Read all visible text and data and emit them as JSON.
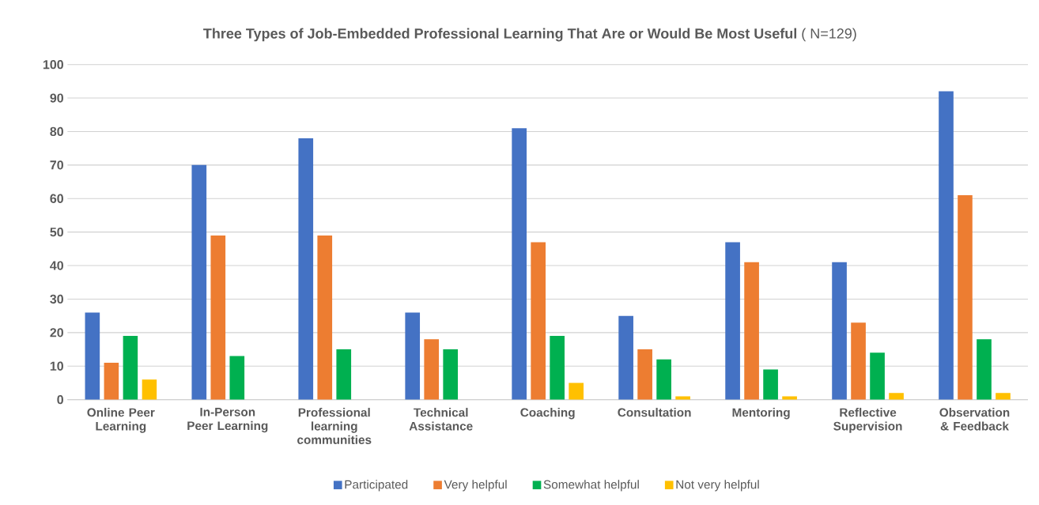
{
  "chart_data": {
    "type": "bar",
    "title": "**Three Types of Job-Embedded Professional Learning That Are or Would Be Most Useful** ( N=129)",
    "categories": [
      "Online Peer Learning",
      "In-Person Peer Learning",
      "Professional learning communities",
      "Technical Assistance",
      "Coaching",
      "Consultation",
      "Mentoring",
      "Reflective Supervision",
      "Observation & Feedback"
    ],
    "series": [
      {
        "name": "Participated",
        "color": "#4472c4",
        "values": [
          26,
          70,
          78,
          26,
          81,
          25,
          47,
          41,
          92
        ]
      },
      {
        "name": "Very helpful",
        "color": "#ed7d31",
        "values": [
          11,
          49,
          49,
          18,
          47,
          15,
          41,
          23,
          61
        ]
      },
      {
        "name": "Somewhat helpful",
        "color": "#00b050",
        "values": [
          19,
          13,
          15,
          15,
          19,
          12,
          9,
          14,
          18
        ]
      },
      {
        "name": "Not very helpful",
        "color": "#ffc000",
        "values": [
          6,
          0,
          0,
          0,
          5,
          1,
          1,
          2,
          2
        ]
      }
    ],
    "ylim": [
      0,
      100
    ],
    "yticks": [
      0,
      10,
      20,
      30,
      40,
      50,
      60,
      70,
      80,
      90,
      100
    ],
    "grid": "y",
    "legend": "bottom"
  }
}
